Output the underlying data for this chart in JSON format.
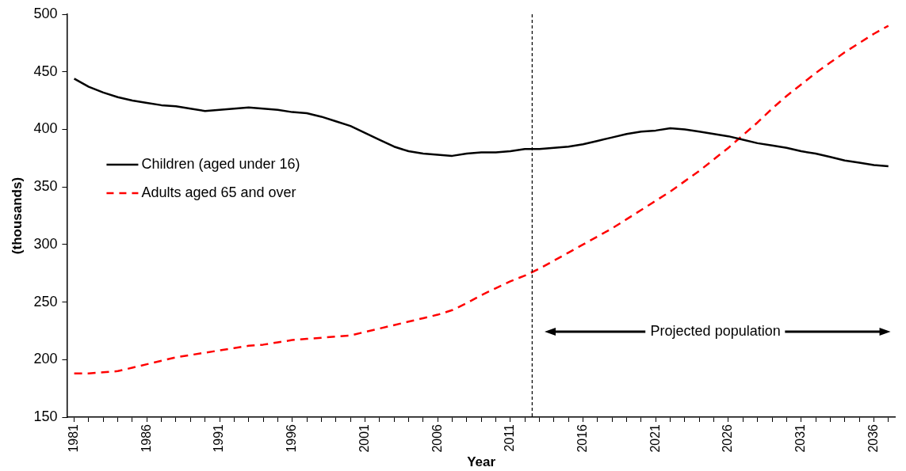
{
  "chart_data": {
    "type": "line",
    "xlabel": "Year",
    "ylabel": "(thousands)",
    "x": [
      1981,
      1982,
      1983,
      1984,
      1985,
      1986,
      1987,
      1988,
      1989,
      1990,
      1991,
      1992,
      1993,
      1994,
      1995,
      1996,
      1997,
      1998,
      1999,
      2000,
      2001,
      2002,
      2003,
      2004,
      2005,
      2006,
      2007,
      2008,
      2009,
      2010,
      2011,
      2012,
      2013,
      2014,
      2015,
      2016,
      2017,
      2018,
      2019,
      2020,
      2021,
      2022,
      2023,
      2024,
      2025,
      2026,
      2027,
      2028,
      2029,
      2030,
      2031,
      2032,
      2033,
      2034,
      2035,
      2036,
      2037
    ],
    "series": [
      {
        "name": "Children (aged under 16)",
        "color": "#000000",
        "line_style": "solid",
        "values": [
          444,
          437,
          432,
          428,
          425,
          423,
          421,
          420,
          418,
          416,
          417,
          418,
          419,
          418,
          417,
          415,
          414,
          411,
          407,
          403,
          397,
          391,
          385,
          381,
          379,
          378,
          377,
          379,
          380,
          380,
          381,
          383,
          383,
          384,
          385,
          387,
          390,
          393,
          396,
          398,
          399,
          401,
          400,
          398,
          396,
          394,
          391,
          388,
          386,
          384,
          381,
          379,
          376,
          373,
          371,
          369,
          368
        ]
      },
      {
        "name": "Adults aged 65 and over",
        "color": "#ff0000",
        "line_style": "dashed",
        "values": [
          188,
          188,
          189,
          190,
          193,
          196,
          199,
          202,
          204,
          206,
          208,
          210,
          212,
          213,
          215,
          217,
          218,
          219,
          220,
          221,
          224,
          227,
          230,
          233,
          236,
          239,
          243,
          249,
          256,
          262,
          268,
          273,
          279,
          286,
          293,
          300,
          307,
          314,
          322,
          330,
          338,
          346,
          355,
          364,
          374,
          384,
          395,
          406,
          418,
          429,
          439,
          449,
          458,
          467,
          475,
          483,
          490
        ]
      }
    ],
    "xlim": [
      1980.5,
      2037.5
    ],
    "xticks": [
      1981,
      {
        "value": 1982,
        "label": null
      },
      {
        "value": 1983,
        "label": null
      },
      {
        "value": 1984,
        "label": null
      },
      {
        "value": 1985,
        "label": null
      },
      1986,
      {
        "value": 1987,
        "label": null
      },
      {
        "value": 1988,
        "label": null
      },
      {
        "value": 1989,
        "label": null
      },
      {
        "value": 1990,
        "label": null
      },
      1991,
      {
        "value": 1992,
        "label": null
      },
      {
        "value": 1993,
        "label": null
      },
      {
        "value": 1994,
        "label": null
      },
      {
        "value": 1995,
        "label": null
      },
      1996,
      {
        "value": 1997,
        "label": null
      },
      {
        "value": 1998,
        "label": null
      },
      {
        "value": 1999,
        "label": null
      },
      {
        "value": 2000,
        "label": null
      },
      2001,
      {
        "value": 2002,
        "label": null
      },
      {
        "value": 2003,
        "label": null
      },
      {
        "value": 2004,
        "label": null
      },
      {
        "value": 2005,
        "label": null
      },
      2006,
      {
        "value": 2007,
        "label": null
      },
      {
        "value": 2008,
        "label": null
      },
      {
        "value": 2009,
        "label": null
      },
      {
        "value": 2010,
        "label": null
      },
      2011,
      {
        "value": 2012,
        "label": null
      },
      {
        "value": 2013,
        "label": null
      },
      {
        "value": 2014,
        "label": null
      },
      {
        "value": 2015,
        "label": null
      },
      2016,
      {
        "value": 2017,
        "label": null
      },
      {
        "value": 2018,
        "label": null
      },
      {
        "value": 2019,
        "label": null
      },
      {
        "value": 2020,
        "label": null
      },
      2021,
      {
        "value": 2022,
        "label": null
      },
      {
        "value": 2023,
        "label": null
      },
      {
        "value": 2024,
        "label": null
      },
      {
        "value": 2025,
        "label": null
      },
      2026,
      {
        "value": 2027,
        "label": null
      },
      {
        "value": 2028,
        "label": null
      },
      {
        "value": 2029,
        "label": null
      },
      {
        "value": 2030,
        "label": null
      },
      2031,
      {
        "value": 2032,
        "label": null
      },
      {
        "value": 2033,
        "label": null
      },
      {
        "value": 2034,
        "label": null
      },
      {
        "value": 2035,
        "label": null
      },
      2036,
      {
        "value": 2037,
        "label": null
      }
    ],
    "ylim": [
      150,
      500
    ],
    "yticks": [
      150,
      200,
      250,
      300,
      350,
      400,
      450,
      500
    ],
    "grid": false,
    "legend": "left",
    "marker": "none",
    "ref_lines": [
      {
        "axis": "x",
        "value": 2012.5,
        "color": "#000000",
        "line_style": "dashed"
      }
    ],
    "annotations": [
      "Projected population"
    ]
  }
}
